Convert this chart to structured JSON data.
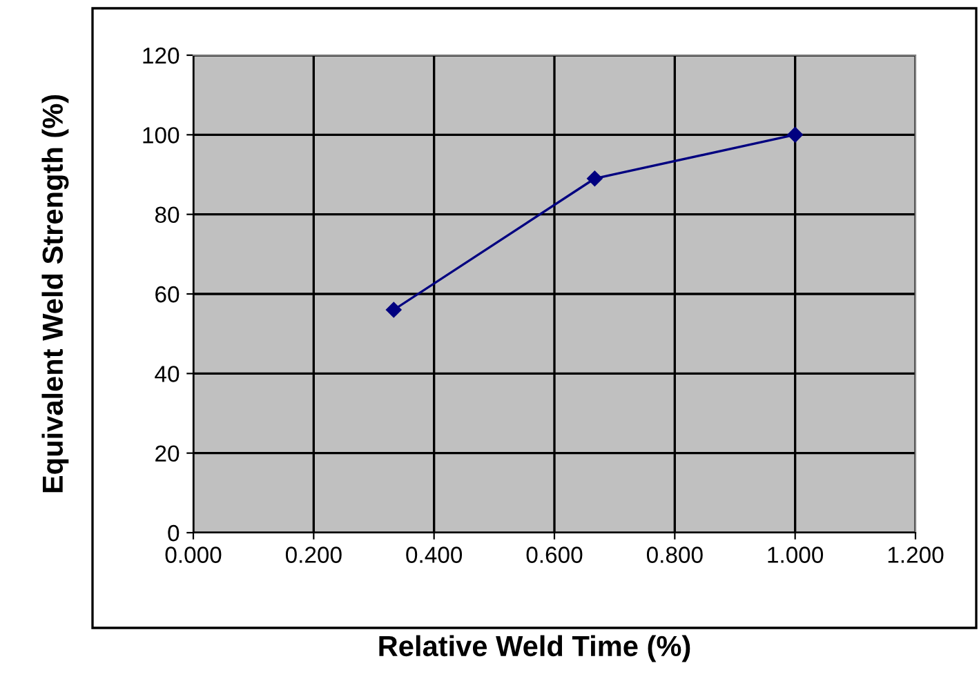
{
  "chart_data": {
    "type": "line",
    "xlabel": "Relative Weld Time (%)",
    "ylabel": "Equivalent Weld Strength (%)",
    "x": [
      0.333,
      0.667,
      1.0
    ],
    "series": [
      {
        "color": "#000080",
        "values": [
          56,
          89,
          100
        ]
      }
    ],
    "xlim": [
      0,
      1.2
    ],
    "xticks": [
      {
        "value": 0,
        "label": "0.000"
      },
      {
        "value": 0.2,
        "label": "0.200"
      },
      {
        "value": 0.4,
        "label": "0.400"
      },
      {
        "value": 0.6,
        "label": "0.600"
      },
      {
        "value": 0.8,
        "label": "0.800"
      },
      {
        "value": 1.0,
        "label": "1.000"
      },
      {
        "value": 1.2,
        "label": "1.200"
      }
    ],
    "ylim": [
      0,
      120
    ],
    "yticks": [
      0,
      20,
      40,
      60,
      80,
      100,
      120
    ],
    "grid": true,
    "marker": "diamond",
    "line_style": "solid",
    "legend": false
  }
}
